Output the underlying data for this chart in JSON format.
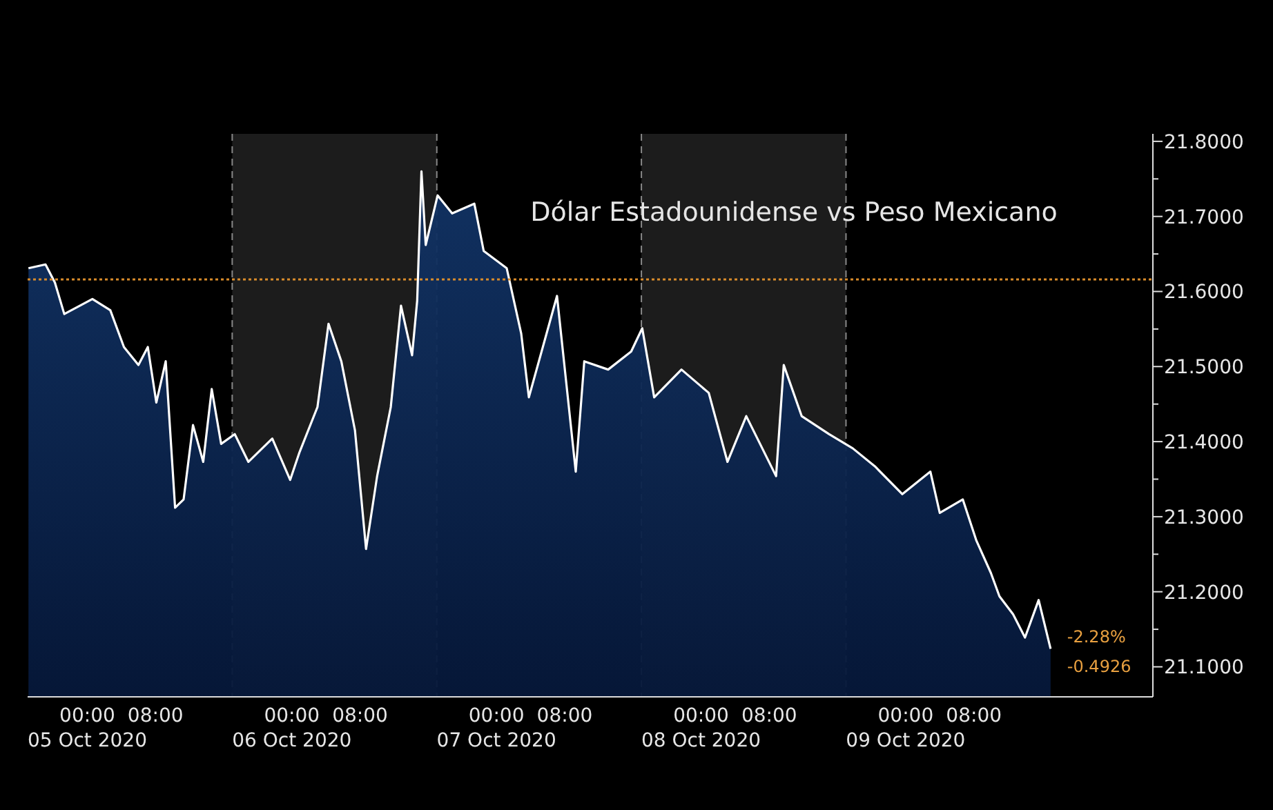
{
  "chart_data": {
    "type": "area",
    "title": "Dólar Estadounidense vs Peso Mexicano",
    "x": [
      "2020-10-04T17:06",
      "2020-10-04T19:06",
      "2020-10-04T20:12",
      "2020-10-04T21:18",
      "2020-10-05T00:36",
      "2020-10-05T02:42",
      "2020-10-05T04:18",
      "2020-10-05T06:00",
      "2020-10-05T07:06",
      "2020-10-05T08:06",
      "2020-10-05T09:12",
      "2020-10-05T10:18",
      "2020-10-05T11:18",
      "2020-10-05T12:24",
      "2020-10-05T13:36",
      "2020-10-05T14:36",
      "2020-10-05T15:42",
      "2020-10-05T17:18",
      "2020-10-05T18:54",
      "2020-10-05T21:42",
      "2020-10-05T23:48",
      "2020-10-06T00:54",
      "2020-10-06T03:00",
      "2020-10-06T04:18",
      "2020-10-06T05:48",
      "2020-10-06T07:24",
      "2020-10-06T08:42",
      "2020-10-06T10:00",
      "2020-10-06T11:36",
      "2020-10-06T12:48",
      "2020-10-06T14:06",
      "2020-10-06T14:42",
      "2020-10-06T15:12",
      "2020-10-06T15:42",
      "2020-10-06T17:06",
      "2020-10-06T18:48",
      "2020-10-06T21:24",
      "2020-10-06T22:30",
      "2020-10-07T01:12",
      "2020-10-07T02:54",
      "2020-10-07T03:48",
      "2020-10-07T07:06",
      "2020-10-07T09:18",
      "2020-10-07T10:18",
      "2020-10-07T13:06",
      "2020-10-07T15:48",
      "2020-10-07T17:06",
      "2020-10-07T18:30",
      "2020-10-07T21:42",
      "2020-10-08T00:54",
      "2020-10-08T03:06",
      "2020-10-08T05:18",
      "2020-10-08T08:48",
      "2020-10-08T09:42",
      "2020-10-08T11:48",
      "2020-10-08T15:00",
      "2020-10-08T17:48",
      "2020-10-08T20:24",
      "2020-10-08T23:36",
      "2020-10-09T02:54",
      "2020-10-09T04:00",
      "2020-10-09T06:42",
      "2020-10-09T08:18",
      "2020-10-09T10:00",
      "2020-10-09T11:00",
      "2020-10-09T12:36",
      "2020-10-09T14:00",
      "2020-10-09T15:36",
      "2020-10-09T17:00"
    ],
    "series": [
      {
        "color": "#ffffff",
        "values": [
          21.631,
          21.636,
          21.612,
          21.57,
          21.59,
          21.575,
          21.526,
          21.502,
          21.526,
          21.452,
          21.507,
          21.312,
          21.323,
          21.422,
          21.373,
          21.47,
          21.397,
          21.41,
          21.373,
          21.404,
          21.349,
          21.386,
          21.446,
          21.557,
          21.507,
          21.415,
          21.257,
          21.354,
          21.446,
          21.581,
          21.515,
          21.588,
          21.76,
          21.662,
          21.728,
          21.704,
          21.717,
          21.654,
          21.631,
          21.544,
          21.459,
          21.594,
          21.36,
          21.507,
          21.496,
          21.52,
          21.551,
          21.459,
          21.496,
          21.465,
          21.373,
          21.434,
          21.354,
          21.502,
          21.434,
          21.41,
          21.391,
          21.367,
          21.33,
          21.36,
          21.305,
          21.323,
          21.268,
          21.225,
          21.194,
          21.17,
          21.139,
          21.189,
          21.124
        ]
      }
    ],
    "xlim": [
      "2020-10-04T17:00",
      "2020-10-10T05:00"
    ],
    "xticks": [
      {
        "value": "2020-10-05T00:00",
        "label": "00:00\n05 Oct 2020"
      },
      {
        "value": "2020-10-05T08:00",
        "label": "08:00"
      },
      {
        "value": "2020-10-06T00:00",
        "label": "00:00\n06 Oct 2020"
      },
      {
        "value": "2020-10-06T08:00",
        "label": "08:00"
      },
      {
        "value": "2020-10-07T00:00",
        "label": "00:00\n07 Oct 2020"
      },
      {
        "value": "2020-10-07T08:00",
        "label": "08:00"
      },
      {
        "value": "2020-10-08T00:00",
        "label": "00:00\n08 Oct 2020"
      },
      {
        "value": "2020-10-08T08:00",
        "label": "08:00"
      },
      {
        "value": "2020-10-09T00:00",
        "label": "00:00\n09 Oct 2020"
      },
      {
        "value": "2020-10-09T08:00",
        "label": "08:00"
      }
    ],
    "ylim": [
      21.06,
      21.81
    ],
    "yticks": [
      {
        "value": 21.1,
        "label": "21.1000"
      },
      {
        "value": 21.15,
        "label": null
      },
      {
        "value": 21.2,
        "label": "21.2000"
      },
      {
        "value": 21.25,
        "label": null
      },
      {
        "value": 21.3,
        "label": "21.3000"
      },
      {
        "value": 21.35,
        "label": null
      },
      {
        "value": 21.4,
        "label": "21.4000"
      },
      {
        "value": 21.45,
        "label": null
      },
      {
        "value": 21.5,
        "label": "21.5000"
      },
      {
        "value": 21.55,
        "label": null
      },
      {
        "value": 21.6,
        "label": "21.6000"
      },
      {
        "value": 21.65,
        "label": null
      },
      {
        "value": 21.7,
        "label": "21.7000"
      },
      {
        "value": 21.75,
        "label": null
      },
      {
        "value": 21.8,
        "label": "21.8000"
      }
    ],
    "ref_lines": [
      {
        "axis": "y",
        "value": 21.616,
        "color": "#d98c2b",
        "line_style": "dotted"
      }
    ],
    "bands": [
      {
        "axis": "x",
        "from": "2020-10-05T17:00",
        "to": "2020-10-06T17:00",
        "color": "#1c1c1c"
      },
      {
        "axis": "x",
        "from": "2020-10-07T17:00",
        "to": "2020-10-08T17:00",
        "color": "#1c1c1c"
      }
    ],
    "annotations": [
      {
        "text": "-2.28%",
        "x": "2020-10-09T17:00",
        "y": 21.14
      },
      {
        "text": "-0.4926",
        "x": "2020-10-09T17:00",
        "y": 21.1
      }
    ],
    "grid": false
  }
}
